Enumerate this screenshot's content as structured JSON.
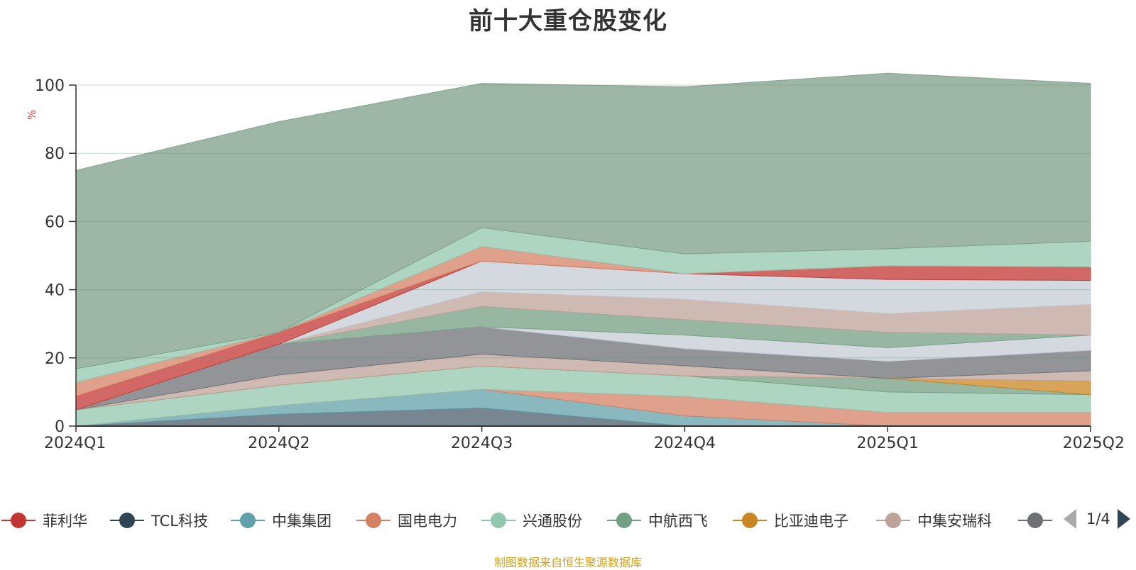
{
  "chart_data": {
    "type": "area",
    "title": "前十大重仓股变化",
    "ylabel": "%",
    "ylim": [
      0,
      100
    ],
    "yticks": [
      0,
      20,
      40,
      60,
      80,
      100
    ],
    "stacked": true,
    "grid": true,
    "categories": [
      "2024Q1",
      "2024Q2",
      "2024Q3",
      "2024Q4",
      "2025Q1",
      "2025Q2"
    ],
    "series": [
      {
        "name": "",
        "color": "#4a5d6b",
        "values": [
          0,
          3.5,
          5.3,
          0,
          0,
          0
        ]
      },
      {
        "name": "中集集团",
        "color": "#61a0a8",
        "values": [
          0,
          2.5,
          5.5,
          3.0,
          0,
          0
        ]
      },
      {
        "name": "国电电力",
        "color": "#d48265",
        "values": [
          0,
          0,
          0,
          5.7,
          4.0,
          4.0
        ]
      },
      {
        "name": "兴通股份",
        "color": "#91c7ae",
        "values": [
          4.8,
          6.0,
          6.8,
          6.0,
          6.0,
          5.2
        ]
      },
      {
        "name": "中航西飞",
        "color": "#749f83",
        "values": [
          0,
          0,
          0,
          0,
          4.0,
          0
        ]
      },
      {
        "name": "比亚迪电子",
        "color": "#ca8622",
        "values": [
          0,
          0,
          0,
          0,
          0,
          4.0
        ]
      },
      {
        "name": "中集安瑞科",
        "color": "#bda29a",
        "values": [
          0,
          3.0,
          3.5,
          3.0,
          0,
          3.0
        ]
      },
      {
        "name": "",
        "color": "#6e7074",
        "values": [
          0,
          9.0,
          8.0,
          5.0,
          5.0,
          6.0
        ]
      },
      {
        "name": "",
        "color": "#c4ccd3",
        "values": [
          0,
          0,
          0,
          4.0,
          4.0,
          4.5
        ]
      },
      {
        "name": "中航西飞",
        "color": "#749f83",
        "values": [
          0,
          0,
          6.0,
          4.5,
          4.5,
          0
        ]
      },
      {
        "name": "中集安瑞科",
        "color": "#bda29a",
        "values": [
          0,
          0,
          4.3,
          6.0,
          5.5,
          9.0
        ]
      },
      {
        "name": "",
        "color": "#c4ccd3",
        "values": [
          0,
          0,
          9.0,
          7.5,
          10.0,
          7.0
        ]
      },
      {
        "name": "菲利华",
        "color": "#c23531",
        "values": [
          4.0,
          3.5,
          0,
          0,
          4.0,
          4.0
        ]
      },
      {
        "name": "国电电力",
        "color": "#d48265",
        "values": [
          4.0,
          0,
          4.3,
          0,
          0,
          0
        ]
      },
      {
        "name": "兴通股份",
        "color": "#91c7ae",
        "values": [
          4.0,
          0,
          5.5,
          5.8,
          5.0,
          7.5
        ]
      },
      {
        "name": "",
        "color": "#7d9e88",
        "values": [
          58.2,
          61.8,
          42.3,
          49.0,
          51.5,
          46.3
        ]
      }
    ]
  },
  "legend": {
    "items": [
      {
        "label": "菲利华",
        "color": "#c23531"
      },
      {
        "label": "TCL科技",
        "color": "#2f4554"
      },
      {
        "label": "中集集团",
        "color": "#61a0a8"
      },
      {
        "label": "国电电力",
        "color": "#d48265"
      },
      {
        "label": "兴通股份",
        "color": "#91c7ae"
      },
      {
        "label": "中航西飞",
        "color": "#749f83"
      },
      {
        "label": "比亚迪电子",
        "color": "#ca8622"
      },
      {
        "label": "中集安瑞科",
        "color": "#bda29a"
      },
      {
        "label": "",
        "color": "#6e7074"
      }
    ],
    "page": "1/4"
  },
  "footer": {
    "source": "制图数据来自恒生聚源数据库"
  }
}
